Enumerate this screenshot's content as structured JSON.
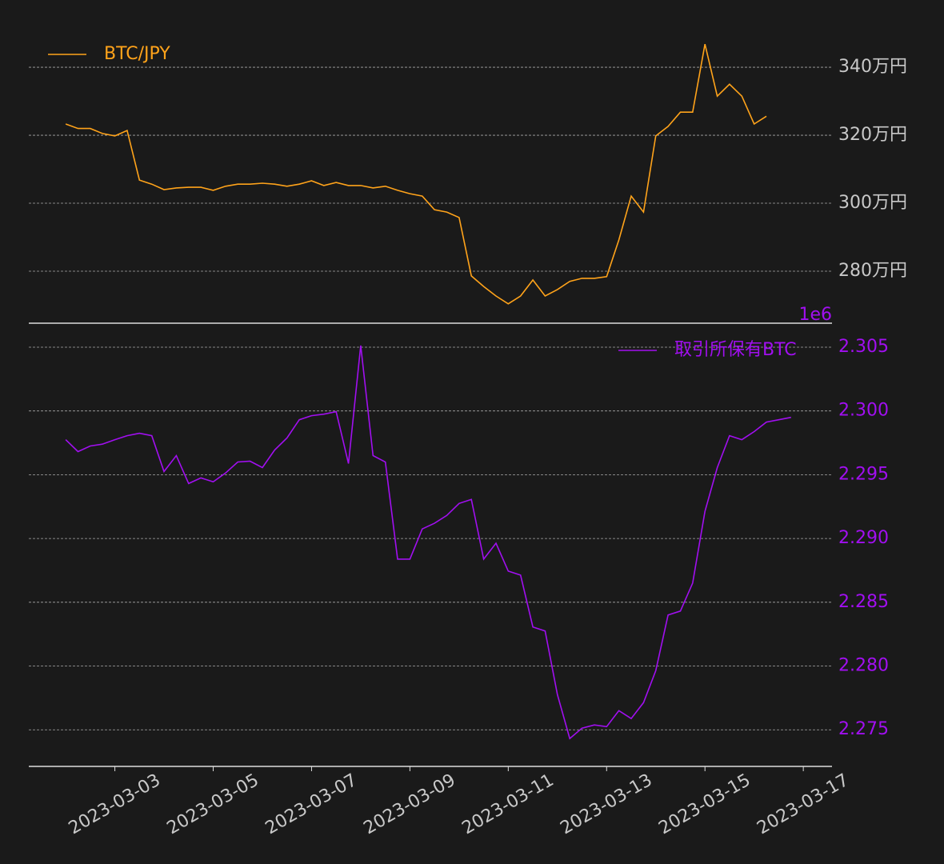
{
  "chart_data": [
    {
      "type": "line",
      "ylim": [
        2647000,
        3492000
      ],
      "xlim": [
        "2023-03-01T06:00",
        "2023-03-17T14:00"
      ],
      "yticks": [
        {
          "value": 2800000,
          "label": "280万円"
        },
        {
          "value": 3000000,
          "label": "300万円"
        },
        {
          "value": 3200000,
          "label": "320万円"
        },
        {
          "value": 3400000,
          "label": "340万円"
        }
      ],
      "grid": true,
      "legend": "upper left",
      "x": [
        "2023-03-02T00:00",
        "2023-03-02T06:00",
        "2023-03-02T12:00",
        "2023-03-02T18:00",
        "2023-03-03T00:00",
        "2023-03-03T06:00",
        "2023-03-03T12:00",
        "2023-03-03T18:00",
        "2023-03-04T00:00",
        "2023-03-04T06:00",
        "2023-03-04T12:00",
        "2023-03-04T18:00",
        "2023-03-05T00:00",
        "2023-03-05T06:00",
        "2023-03-05T12:00",
        "2023-03-05T18:00",
        "2023-03-06T00:00",
        "2023-03-06T06:00",
        "2023-03-06T12:00",
        "2023-03-06T18:00",
        "2023-03-07T00:00",
        "2023-03-07T06:00",
        "2023-03-07T12:00",
        "2023-03-07T18:00",
        "2023-03-08T00:00",
        "2023-03-08T06:00",
        "2023-03-08T12:00",
        "2023-03-08T18:00",
        "2023-03-09T00:00",
        "2023-03-09T06:00",
        "2023-03-09T12:00",
        "2023-03-09T18:00",
        "2023-03-10T00:00",
        "2023-03-10T06:00",
        "2023-03-10T12:00",
        "2023-03-10T18:00",
        "2023-03-11T00:00",
        "2023-03-11T06:00",
        "2023-03-11T12:00",
        "2023-03-11T18:00",
        "2023-03-12T00:00",
        "2023-03-12T06:00",
        "2023-03-12T12:00",
        "2023-03-12T18:00",
        "2023-03-13T00:00",
        "2023-03-13T06:00",
        "2023-03-13T12:00",
        "2023-03-13T18:00",
        "2023-03-14T00:00",
        "2023-03-14T06:00",
        "2023-03-14T12:00",
        "2023-03-14T18:00",
        "2023-03-15T00:00",
        "2023-03-15T06:00",
        "2023-03-15T12:00",
        "2023-03-15T18:00",
        "2023-03-16T00:00",
        "2023-03-16T06:00"
      ],
      "series": [
        {
          "name": "BTC/JPY",
          "color": "#ffa31a",
          "values": [
            3233000,
            3220000,
            3220000,
            3205000,
            3198000,
            3214000,
            3068000,
            3056000,
            3040000,
            3045000,
            3047000,
            3047000,
            3038000,
            3050000,
            3056000,
            3056000,
            3059000,
            3056000,
            3050000,
            3056000,
            3066000,
            3052000,
            3061000,
            3052000,
            3052000,
            3045000,
            3050000,
            3038000,
            3028000,
            3021000,
            2981000,
            2974000,
            2958000,
            2786000,
            2755000,
            2727000,
            2704000,
            2727000,
            2774000,
            2727000,
            2746000,
            2770000,
            2779000,
            2779000,
            2784000,
            2892000,
            3021000,
            2974000,
            3198000,
            3226000,
            3268000,
            3268000,
            3468000,
            3315000,
            3350000,
            3315000,
            3233000,
            3256000
          ]
        }
      ]
    },
    {
      "type": "line",
      "ylim": [
        2.27213,
        2.30688
      ],
      "offset_label": "1e6",
      "xlim": [
        "2023-03-01T06:00",
        "2023-03-17T14:00"
      ],
      "yticks": [
        {
          "value": 2.275,
          "label": "2.275"
        },
        {
          "value": 2.28,
          "label": "2.280"
        },
        {
          "value": 2.285,
          "label": "2.285"
        },
        {
          "value": 2.29,
          "label": "2.290"
        },
        {
          "value": 2.295,
          "label": "2.295"
        },
        {
          "value": 2.3,
          "label": "2.300"
        },
        {
          "value": 2.305,
          "label": "2.305"
        }
      ],
      "xticks": [
        {
          "value": "2023-03-03T00:00",
          "label": "2023-03-03"
        },
        {
          "value": "2023-03-05T00:00",
          "label": "2023-03-05"
        },
        {
          "value": "2023-03-07T00:00",
          "label": "2023-03-07"
        },
        {
          "value": "2023-03-09T00:00",
          "label": "2023-03-09"
        },
        {
          "value": "2023-03-11T00:00",
          "label": "2023-03-11"
        },
        {
          "value": "2023-03-13T00:00",
          "label": "2023-03-13"
        },
        {
          "value": "2023-03-15T00:00",
          "label": "2023-03-15"
        },
        {
          "value": "2023-03-17T00:00",
          "label": "2023-03-17"
        }
      ],
      "grid": true,
      "legend": "upper right",
      "x": [
        "2023-03-02T00:00",
        "2023-03-02T06:00",
        "2023-03-02T12:00",
        "2023-03-02T18:00",
        "2023-03-03T00:00",
        "2023-03-03T06:00",
        "2023-03-03T12:00",
        "2023-03-03T18:00",
        "2023-03-04T00:00",
        "2023-03-04T06:00",
        "2023-03-04T12:00",
        "2023-03-04T18:00",
        "2023-03-05T00:00",
        "2023-03-05T06:00",
        "2023-03-05T12:00",
        "2023-03-05T18:00",
        "2023-03-06T00:00",
        "2023-03-06T06:00",
        "2023-03-06T12:00",
        "2023-03-06T18:00",
        "2023-03-07T00:00",
        "2023-03-07T06:00",
        "2023-03-07T12:00",
        "2023-03-07T18:00",
        "2023-03-08T00:00",
        "2023-03-08T06:00",
        "2023-03-08T12:00",
        "2023-03-08T18:00",
        "2023-03-09T00:00",
        "2023-03-09T06:00",
        "2023-03-09T12:00",
        "2023-03-09T18:00",
        "2023-03-10T00:00",
        "2023-03-10T06:00",
        "2023-03-10T12:00",
        "2023-03-10T18:00",
        "2023-03-11T00:00",
        "2023-03-11T06:00",
        "2023-03-11T12:00",
        "2023-03-11T18:00",
        "2023-03-12T00:00",
        "2023-03-12T06:00",
        "2023-03-12T12:00",
        "2023-03-12T18:00",
        "2023-03-13T00:00",
        "2023-03-13T06:00",
        "2023-03-13T12:00",
        "2023-03-13T18:00",
        "2023-03-14T00:00",
        "2023-03-14T06:00",
        "2023-03-14T12:00",
        "2023-03-14T18:00",
        "2023-03-15T00:00",
        "2023-03-15T06:00",
        "2023-03-15T12:00",
        "2023-03-15T18:00",
        "2023-03-16T00:00",
        "2023-03-16T06:00",
        "2023-03-16T12:00",
        "2023-03-16T18:00"
      ],
      "series": [
        {
          "name": "取引所保有BTC",
          "color": "#a10ff0",
          "values": [
            2.29775,
            2.29681,
            2.29725,
            2.2974,
            2.29775,
            2.29806,
            2.29825,
            2.29806,
            2.29525,
            2.2965,
            2.29431,
            2.29475,
            2.29444,
            2.29513,
            2.296,
            2.29606,
            2.29556,
            2.29694,
            2.29788,
            2.29931,
            2.29963,
            2.29975,
            2.29994,
            2.29588,
            2.30513,
            2.2965,
            2.296,
            2.28838,
            2.28838,
            2.29075,
            2.29119,
            2.29181,
            2.29275,
            2.29306,
            2.28838,
            2.28963,
            2.28744,
            2.28713,
            2.28306,
            2.28275,
            2.27775,
            2.27431,
            2.27513,
            2.27538,
            2.27525,
            2.2765,
            2.27588,
            2.27713,
            2.27963,
            2.284,
            2.28431,
            2.2865,
            2.29213,
            2.29556,
            2.29806,
            2.29775,
            2.29838,
            2.29913,
            2.29931,
            2.2995
          ]
        }
      ]
    }
  ]
}
